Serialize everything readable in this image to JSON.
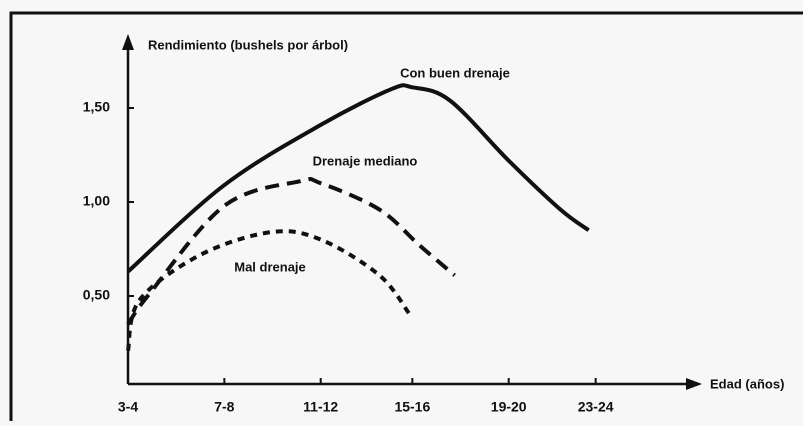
{
  "chart_data": {
    "type": "line",
    "y_label": "Rendimiento (bushels por árbol)",
    "x_label": "Edad (años)",
    "xlim": [
      3.5,
      27.5
    ],
    "xticks": [
      {
        "value": 3.5,
        "label": "3-4"
      },
      {
        "value": 7.6,
        "label": "7-8"
      },
      {
        "value": 11.7,
        "label": "11-12"
      },
      {
        "value": 15.6,
        "label": "15-16"
      },
      {
        "value": 19.7,
        "label": "19-20"
      },
      {
        "value": 23.4,
        "label": "23-24"
      }
    ],
    "ylim": [
      0,
      1.8
    ],
    "yticks": [
      {
        "value": 0.5,
        "label": "0,50"
      },
      {
        "value": 1.0,
        "label": "1,00"
      },
      {
        "value": 1.5,
        "label": "1,50"
      }
    ],
    "series": [
      {
        "name": "Con buen drenaje",
        "color": "#111111",
        "style": "solid",
        "x": [
          3.5,
          7.6,
          11.7,
          14.7,
          15.6,
          17.2,
          19.7,
          21.9,
          23.1
        ],
        "values": [
          0.63,
          1.09,
          1.41,
          1.6,
          1.61,
          1.54,
          1.22,
          0.96,
          0.85
        ]
      },
      {
        "name": "Drenaje mediano",
        "color": "#111111",
        "style": "dashed",
        "x": [
          3.5,
          4.4,
          7.6,
          10.8,
          11.7,
          14.2,
          15.9,
          17.4
        ],
        "values": [
          0.35,
          0.51,
          0.98,
          1.11,
          1.1,
          0.96,
          0.77,
          0.61
        ]
      },
      {
        "name": "Mal drenaje",
        "color": "#111111",
        "style": "dotted",
        "x": [
          3.5,
          4.0,
          6.6,
          9.6,
          11.7,
          14.2,
          15.5
        ],
        "values": [
          0.21,
          0.48,
          0.72,
          0.84,
          0.8,
          0.61,
          0.4
        ]
      }
    ]
  }
}
